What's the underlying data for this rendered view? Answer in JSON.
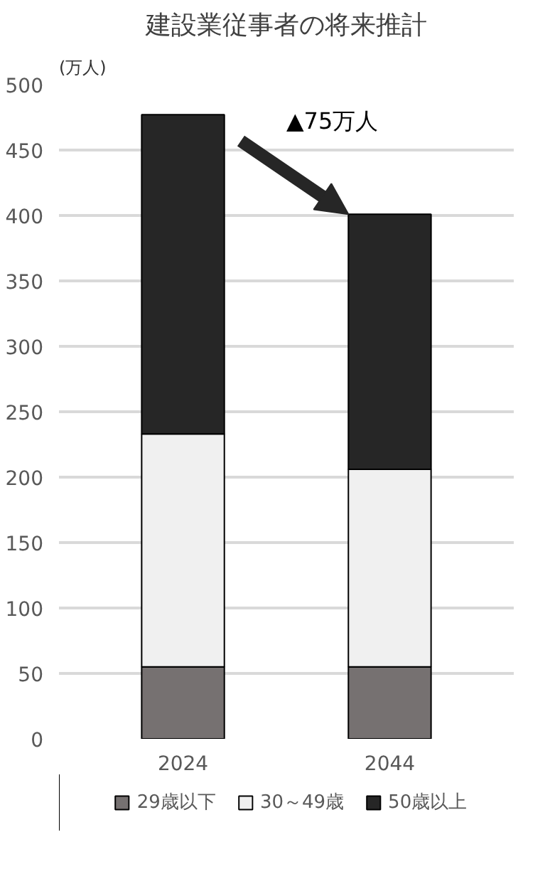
{
  "chart_data": {
    "type": "bar",
    "stacked": true,
    "title": "建設業従事者の将来推計",
    "ylabel": "(万人)",
    "categories": [
      "2024",
      "2044"
    ],
    "series": [
      {
        "name": "29歳以下",
        "color": "#767171",
        "values": [
          55,
          55
        ]
      },
      {
        "name": "30～49歳",
        "color": "#f0f0f0",
        "values": [
          178,
          151
        ]
      },
      {
        "name": "50歳以上",
        "color": "#262626",
        "values": [
          244,
          195
        ]
      }
    ],
    "ylim": [
      0,
      500
    ],
    "yticks": [
      0,
      50,
      100,
      150,
      200,
      250,
      300,
      350,
      400,
      450,
      500
    ],
    "grid": "y",
    "legend": "bottom",
    "annotations": [
      "▲75万人"
    ]
  }
}
